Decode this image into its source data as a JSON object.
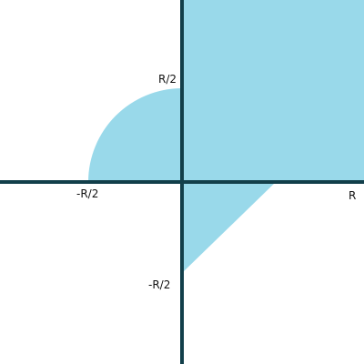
{
  "colors": {
    "region_fill": "#99d9ea",
    "axis_color": "#123f4a",
    "label_color": "#111111",
    "background": "#ffffff"
  },
  "labels": {
    "y_half_pos": "R/2",
    "x_half_neg": "-R/2",
    "x_full_pos": "R",
    "y_half_neg": "-R/2"
  },
  "regions": {
    "quadrant_1": "rectangle",
    "quadrant_2": "quarter-circle",
    "quadrant_4": "triangle"
  }
}
